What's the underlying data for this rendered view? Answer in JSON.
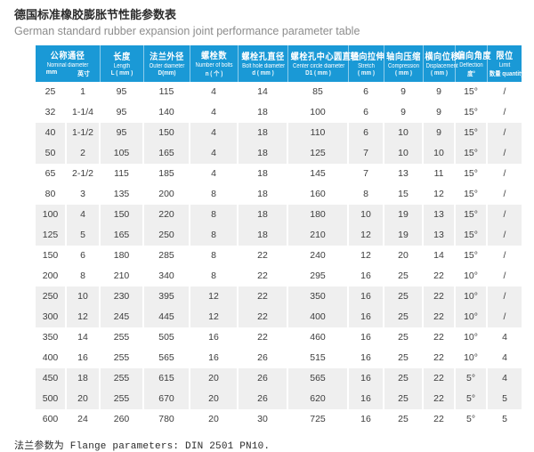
{
  "title": {
    "cn": "德国标准橡胶膨胀节性能参数表",
    "en": "German standard rubber expansion joint performance parameter table"
  },
  "footer": {
    "text": "法兰参数为 Flange parameters: DIN 2501 PN10."
  },
  "colors": {
    "header_bg": "#1a99d6",
    "alt_row_bg": "#efefef",
    "header_text": "#ffffff",
    "body_text": "#3c3c3c"
  },
  "table": {
    "columns": [
      {
        "key": "nominal-diameter",
        "cn": "公称通径",
        "en": "Nominal diameter",
        "units": [
          "mm",
          "英寸"
        ],
        "span": 2
      },
      {
        "key": "length",
        "cn": "长度",
        "en": "Length",
        "unit": "L ( mm )"
      },
      {
        "key": "outer-diameter",
        "cn": "法兰外径",
        "en": "Outer diameter",
        "unit": "D(mm)"
      },
      {
        "key": "number-of-bolts",
        "cn": "螺栓数",
        "en": "Number of bolts",
        "unit": "n ( 个 )"
      },
      {
        "key": "bolt-hole-diameter",
        "cn": "螺栓孔直径",
        "en": "Bolt hole diameter",
        "unit": "d ( mm )"
      },
      {
        "key": "center-circle-diameter",
        "cn": "螺栓孔中心圆直径",
        "en": "Center circle diameter",
        "unit": "D1 ( mm )"
      },
      {
        "key": "stretch",
        "cn": "轴向拉伸",
        "en": "Stretch",
        "unit": "( mm )"
      },
      {
        "key": "compression",
        "cn": "轴向压缩",
        "en": "Compression",
        "unit": "( mm )"
      },
      {
        "key": "displacement",
        "cn": "横向位移",
        "en": "Displacement",
        "unit": "( mm )"
      },
      {
        "key": "deflection",
        "cn": "偏向角度",
        "en": "Deflection",
        "unit": "度°"
      },
      {
        "key": "limit",
        "cn": "限位",
        "en": "Limit",
        "unit": "数量 quantity"
      }
    ],
    "cell_keys": [
      "nominal-mm",
      "nominal-inch",
      "length",
      "outer-diameter",
      "bolts",
      "bolt-hole",
      "center-circle",
      "stretch",
      "compression",
      "displacement",
      "deflection",
      "limit"
    ],
    "rows": [
      [
        "25",
        "1",
        "95",
        "115",
        "4",
        "14",
        "85",
        "6",
        "9",
        "9",
        "15°",
        "/"
      ],
      [
        "32",
        "1-1/4",
        "95",
        "140",
        "4",
        "18",
        "100",
        "6",
        "9",
        "9",
        "15°",
        "/"
      ],
      [
        "40",
        "1-1/2",
        "95",
        "150",
        "4",
        "18",
        "110",
        "6",
        "10",
        "9",
        "15°",
        "/"
      ],
      [
        "50",
        "2",
        "105",
        "165",
        "4",
        "18",
        "125",
        "7",
        "10",
        "10",
        "15°",
        "/"
      ],
      [
        "65",
        "2-1/2",
        "115",
        "185",
        "4",
        "18",
        "145",
        "7",
        "13",
        "11",
        "15°",
        "/"
      ],
      [
        "80",
        "3",
        "135",
        "200",
        "8",
        "18",
        "160",
        "8",
        "15",
        "12",
        "15°",
        "/"
      ],
      [
        "100",
        "4",
        "150",
        "220",
        "8",
        "18",
        "180",
        "10",
        "19",
        "13",
        "15°",
        "/"
      ],
      [
        "125",
        "5",
        "165",
        "250",
        "8",
        "18",
        "210",
        "12",
        "19",
        "13",
        "15°",
        "/"
      ],
      [
        "150",
        "6",
        "180",
        "285",
        "8",
        "22",
        "240",
        "12",
        "20",
        "14",
        "15°",
        "/"
      ],
      [
        "200",
        "8",
        "210",
        "340",
        "8",
        "22",
        "295",
        "16",
        "25",
        "22",
        "10°",
        "/"
      ],
      [
        "250",
        "10",
        "230",
        "395",
        "12",
        "22",
        "350",
        "16",
        "25",
        "22",
        "10°",
        "/"
      ],
      [
        "300",
        "12",
        "245",
        "445",
        "12",
        "22",
        "400",
        "16",
        "25",
        "22",
        "10°",
        "/"
      ],
      [
        "350",
        "14",
        "255",
        "505",
        "16",
        "22",
        "460",
        "16",
        "25",
        "22",
        "10°",
        "4"
      ],
      [
        "400",
        "16",
        "255",
        "565",
        "16",
        "26",
        "515",
        "16",
        "25",
        "22",
        "10°",
        "4"
      ],
      [
        "450",
        "18",
        "255",
        "615",
        "20",
        "26",
        "565",
        "16",
        "25",
        "22",
        "5°",
        "4"
      ],
      [
        "500",
        "20",
        "255",
        "670",
        "20",
        "26",
        "620",
        "16",
        "25",
        "22",
        "5°",
        "5"
      ],
      [
        "600",
        "24",
        "260",
        "780",
        "20",
        "30",
        "725",
        "16",
        "25",
        "22",
        "5°",
        "5"
      ]
    ],
    "shaded_row_indexes": [
      2,
      3,
      6,
      7,
      10,
      11,
      14,
      15
    ]
  }
}
